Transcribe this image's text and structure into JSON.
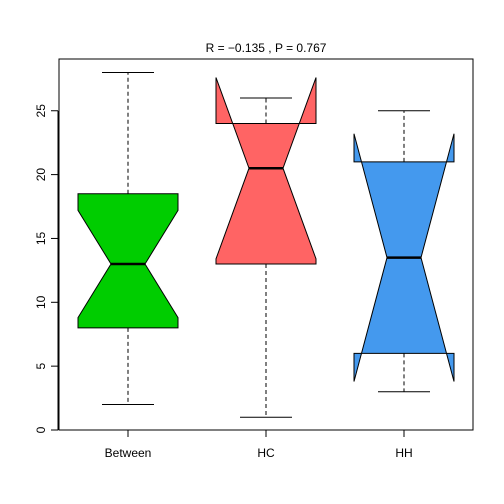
{
  "chart_data": {
    "type": "boxplot",
    "notched": true,
    "title": "R =  −0.135 ,  P =  0.767",
    "xlabel": "",
    "ylabel": "",
    "ylim": [
      0,
      28
    ],
    "yticks": [
      0,
      5,
      10,
      15,
      20,
      25
    ],
    "grid": false,
    "legend": "none",
    "categories": [
      "Between",
      "HC",
      "HH"
    ],
    "boxes": [
      {
        "label": "Between",
        "color": "#00cd00",
        "whisker_low": 2,
        "q1": 8,
        "median": 13,
        "q3": 18.5,
        "whisker_high": 28,
        "notch_low": 8.8,
        "notch_high": 17.2
      },
      {
        "label": "HC",
        "color": "#ff6464",
        "whisker_low": 1,
        "q1": 13,
        "median": 20.5,
        "q3": 24,
        "whisker_high": 26,
        "notch_low": 13.4,
        "notch_high": 27.6
      },
      {
        "label": "HH",
        "color": "#4499ee",
        "whisker_low": 3,
        "q1": 6,
        "median": 13.5,
        "q3": 21,
        "whisker_high": 25,
        "notch_low": 3.8,
        "notch_high": 23.2
      }
    ]
  }
}
